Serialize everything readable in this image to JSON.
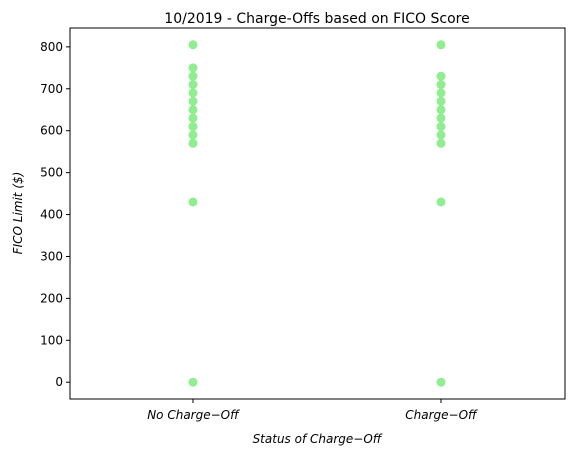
{
  "chart_data": {
    "type": "scatter",
    "title": "10/2019 - Charge-Offs based on FICO Score",
    "xlabel": "Status of Charge−Off",
    "ylabel": "FICO Limit ($)",
    "categories": [
      "No Charge−Off",
      "Charge−Off"
    ],
    "ylim": [
      -40,
      845
    ],
    "yticks": [
      0,
      100,
      200,
      300,
      400,
      500,
      600,
      700,
      800
    ],
    "grid": false,
    "marker_color": "#90ee90",
    "series": [
      {
        "category": "No Charge−Off",
        "values": [
          0,
          430,
          570,
          590,
          610,
          630,
          650,
          670,
          690,
          710,
          730,
          750,
          805
        ]
      },
      {
        "category": "Charge−Off",
        "values": [
          0,
          430,
          570,
          590,
          610,
          630,
          650,
          670,
          690,
          710,
          730,
          805
        ]
      }
    ]
  }
}
